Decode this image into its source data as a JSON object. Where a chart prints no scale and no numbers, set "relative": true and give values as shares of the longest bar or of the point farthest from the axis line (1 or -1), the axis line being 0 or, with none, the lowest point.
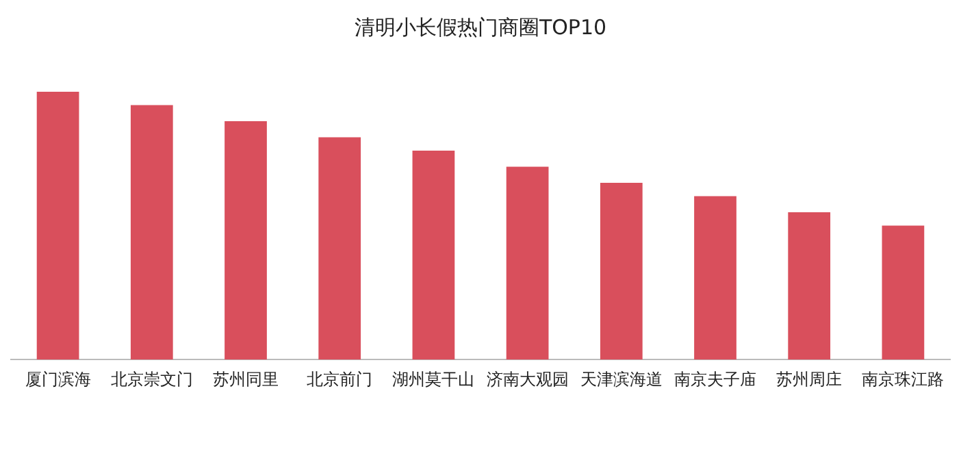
{
  "chart_data": {
    "type": "bar",
    "title": "清明小长假热门商圈TOP10",
    "relative": true,
    "categories": [
      "厦门滨海",
      "北京崇文门",
      "苏州同里",
      "北京前门",
      "湖州莫干山",
      "济南大观园",
      "天津滨海道",
      "南京夫子庙",
      "苏州周庄",
      "南京珠江路"
    ],
    "values": [
      1,
      0.95,
      0.89,
      0.83,
      0.78,
      0.72,
      0.66,
      0.61,
      0.55,
      0.5
    ],
    "color": "#d94f5c",
    "grid": false,
    "legend": false
  }
}
